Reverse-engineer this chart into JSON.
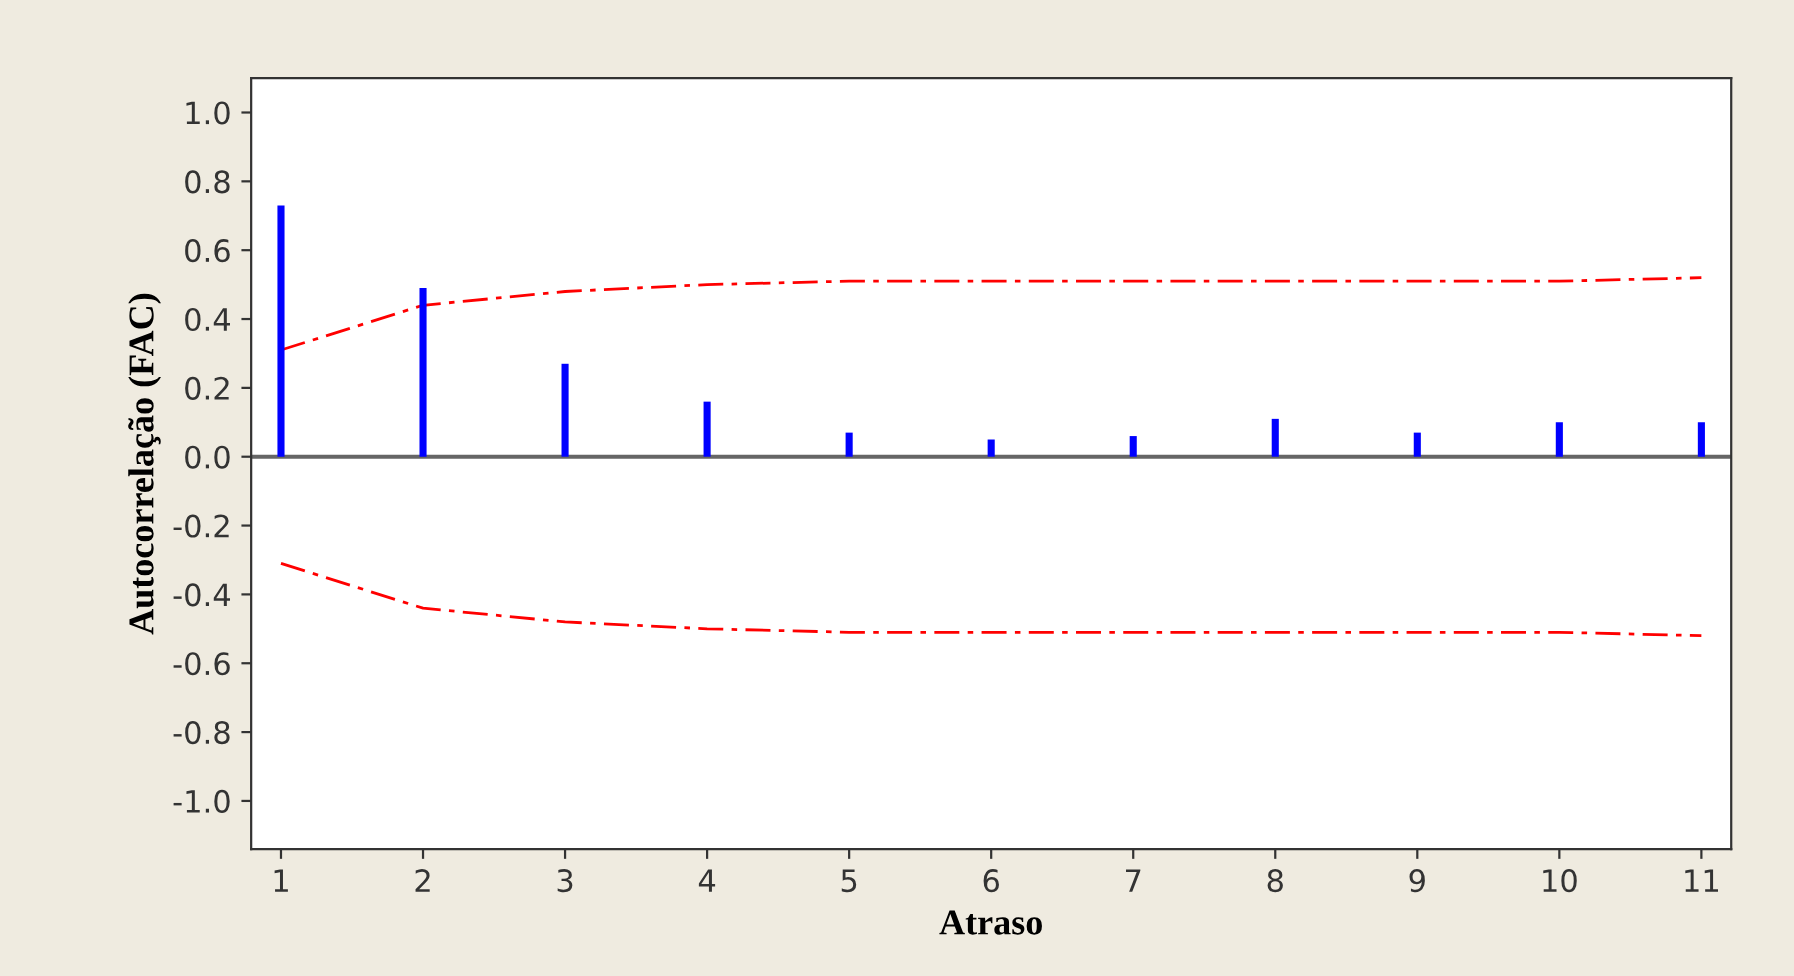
{
  "chart_data": {
    "type": "bar",
    "xlabel": "Atraso",
    "ylabel": "Autocorrelação (FAC)",
    "x": [
      1,
      2,
      3,
      4,
      5,
      6,
      7,
      8,
      9,
      10,
      11
    ],
    "series": [
      {
        "color": "#0000ff",
        "values": [
          0.73,
          0.49,
          0.27,
          0.16,
          0.07,
          0.05,
          0.06,
          0.11,
          0.07,
          0.1,
          0.1
        ]
      },
      {
        "type": "line",
        "color": "#ff0000",
        "line_style": "dashed",
        "values": [
          0.31,
          0.44,
          0.48,
          0.5,
          0.51,
          0.51,
          0.51,
          0.51,
          0.51,
          0.51,
          0.52
        ]
      },
      {
        "type": "line",
        "color": "#ff0000",
        "line_style": "dashed",
        "values": [
          -0.31,
          -0.44,
          -0.48,
          -0.5,
          -0.51,
          -0.51,
          -0.51,
          -0.51,
          -0.51,
          -0.51,
          -0.52
        ]
      }
    ],
    "xlim": [
      0.79,
      11.21
    ],
    "xticks": [
      1,
      2,
      3,
      4,
      5,
      6,
      7,
      8,
      9,
      10,
      11
    ],
    "ylim": [
      -1.14,
      1.1
    ],
    "yticks": [
      {
        "value": -1.0,
        "label": "-1.0"
      },
      {
        "value": -0.8,
        "label": "-0.8"
      },
      {
        "value": -0.6,
        "label": "-0.6"
      },
      {
        "value": -0.4,
        "label": "-0.4"
      },
      {
        "value": -0.2,
        "label": "-0.2"
      },
      {
        "value": 0.0,
        "label": "0.0"
      },
      {
        "value": 0.2,
        "label": "0.2"
      },
      {
        "value": 0.4,
        "label": "0.4"
      },
      {
        "value": 0.6,
        "label": "0.6"
      },
      {
        "value": 0.8,
        "label": "0.8"
      },
      {
        "value": 1.0,
        "label": "1.0"
      }
    ],
    "ref_lines": [
      {
        "axis": "y",
        "value": 0,
        "color": "#666666"
      }
    ],
    "grid": false
  }
}
